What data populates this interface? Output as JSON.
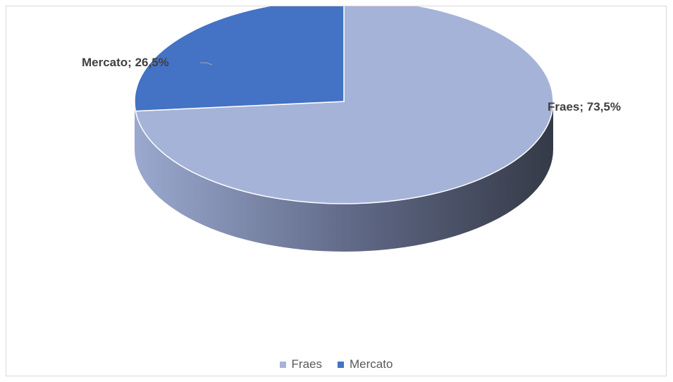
{
  "chart_data": {
    "type": "pie",
    "title": "",
    "categories": [
      "Fraes",
      "Mercato"
    ],
    "values": [
      73.5,
      26.5
    ],
    "unit": "%",
    "data_labels": [
      "Fraes; 73,5%",
      "Mercato; 26,5%"
    ],
    "colors": [
      "#a5b3d8",
      "#4472c4"
    ],
    "side_colors": [
      "#7d8aac",
      "#3a4050"
    ],
    "style": "3d",
    "legend_position": "bottom"
  },
  "legend": {
    "items": [
      {
        "label": "Fraes",
        "color": "#a5b3d8"
      },
      {
        "label": "Mercato",
        "color": "#4472c4"
      }
    ]
  }
}
